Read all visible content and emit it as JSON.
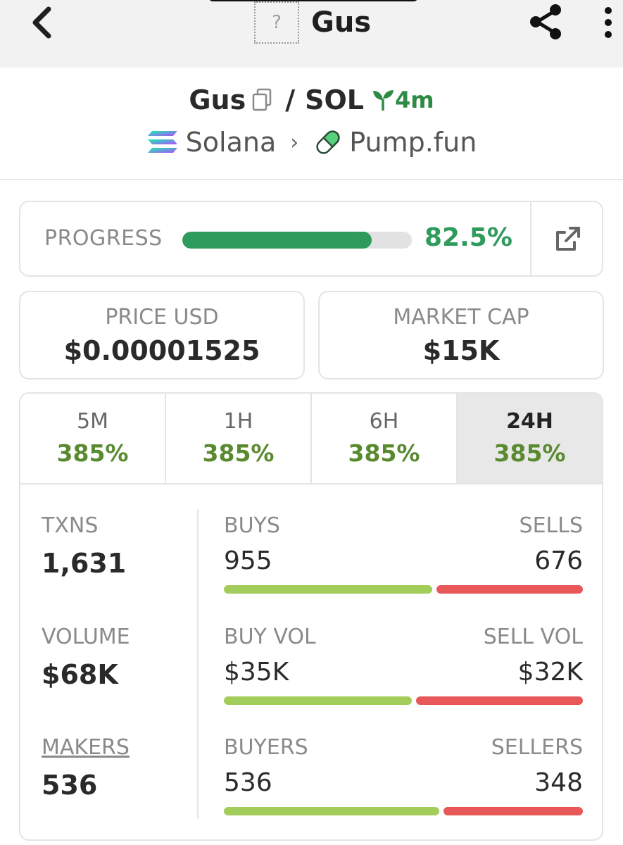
{
  "topbar": {
    "title": "Gus",
    "logo_placeholder": "?",
    "icons": {
      "back": "chevron-left-icon",
      "share": "share-icon",
      "more": "more-vertical-icon"
    }
  },
  "pair": {
    "base": "Gus",
    "separator": "/",
    "quote": "SOL",
    "age": "4m",
    "chain": "Solana",
    "dex": "Pump.fun",
    "chevron": "›"
  },
  "progress": {
    "label": "PROGRESS",
    "percent_text": "82.5%",
    "fraction": 0.825,
    "color": "#2e9a5c"
  },
  "price": {
    "label": "PRICE USD",
    "value": "$0.00001525"
  },
  "market_cap": {
    "label": "MARKET CAP",
    "value": "$15K"
  },
  "tabs": [
    {
      "label": "5M",
      "value": "385%",
      "active": false
    },
    {
      "label": "1H",
      "value": "385%",
      "active": false
    },
    {
      "label": "6H",
      "value": "385%",
      "active": false
    },
    {
      "label": "24H",
      "value": "385%",
      "active": true
    }
  ],
  "stats": {
    "txns": {
      "label": "TXNS",
      "value": "1,631"
    },
    "volume": {
      "label": "VOLUME",
      "value": "$68K"
    },
    "makers": {
      "label": "MAKERS",
      "value": "536"
    }
  },
  "splits": {
    "txns": {
      "left_label": "BUYS",
      "right_label": "SELLS",
      "left_value": "955",
      "right_value": "676",
      "buy_fraction": 0.586
    },
    "volume": {
      "left_label": "BUY VOL",
      "right_label": "SELL VOL",
      "left_value": "$35K",
      "right_value": "$32K",
      "buy_fraction": 0.53
    },
    "makers": {
      "left_label": "BUYERS",
      "right_label": "SELLERS",
      "left_value": "536",
      "right_value": "348",
      "buy_fraction": 0.606
    }
  },
  "colors": {
    "buy": "#a3cd5a",
    "sell": "#e85858",
    "positive": "#5a8a30"
  }
}
